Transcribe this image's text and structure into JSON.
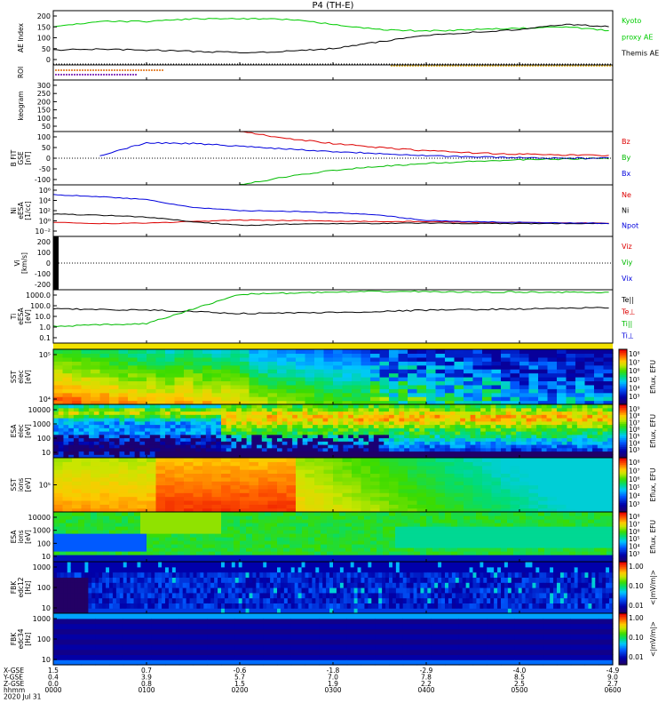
{
  "header": {
    "title": "P4 (TH-E)"
  },
  "panels": [
    {
      "id": "ae",
      "ylabel": [
        "AE Index"
      ],
      "ticks": [
        "200",
        "150",
        "100",
        "50",
        "0"
      ],
      "legend": [
        {
          "text": "Kyoto",
          "color": "#00cc00"
        },
        {
          "text": "proxy AE",
          "color": "#00cc00"
        },
        {
          "text": "Themis AE",
          "color": "#000000"
        }
      ]
    },
    {
      "id": "roi",
      "ylabel": [
        "ROI"
      ],
      "ticks": [],
      "legend": []
    },
    {
      "id": "keogram",
      "ylabel": [
        "keogram"
      ],
      "ticks": [
        "300",
        "250",
        "200",
        "150",
        "100",
        "50"
      ],
      "legend": []
    },
    {
      "id": "bfit",
      "ylabel": [
        "B FIT",
        "GSE",
        "[nT]"
      ],
      "ticks": [
        "100",
        "50",
        "0",
        "-50",
        "-100"
      ],
      "legend": [
        {
          "text": "Bz",
          "color": "#dd0000"
        },
        {
          "text": "By",
          "color": "#00bb00"
        },
        {
          "text": "Bx",
          "color": "#0000dd"
        }
      ]
    },
    {
      "id": "density",
      "ylabel": [
        "Ni",
        "eESA",
        "[1/cc]"
      ],
      "ticks": [
        "10⁶",
        "10⁴",
        "10²",
        "10⁰",
        "10⁻²"
      ],
      "legend": [
        {
          "text": "Ne",
          "color": "#dd0000"
        },
        {
          "text": "Ni",
          "color": "#000000"
        },
        {
          "text": "Npot",
          "color": "#0000dd"
        }
      ]
    },
    {
      "id": "velocity",
      "ylabel": [
        "Vi",
        "[km/s]"
      ],
      "ticks": [
        "200",
        "100",
        "0",
        "-100",
        "-200"
      ],
      "legend": [
        {
          "text": "Viz",
          "color": "#dd0000"
        },
        {
          "text": "Viy",
          "color": "#00bb00"
        },
        {
          "text": "Vix",
          "color": "#0000dd"
        }
      ]
    },
    {
      "id": "temp",
      "ylabel": [
        "Ti",
        "eESA",
        "[eV]"
      ],
      "ticks": [
        "1000.0",
        "100.0",
        "10.0",
        "1.0",
        "0.1"
      ],
      "legend": [
        {
          "text": "Te||",
          "color": "#000000"
        },
        {
          "text": "Te⊥",
          "color": "#dd0000"
        },
        {
          "text": "Ti||",
          "color": "#00bb00"
        },
        {
          "text": "Ti⊥",
          "color": "#0000dd"
        }
      ]
    },
    {
      "id": "sst_e",
      "ylabel": [
        "SST",
        "elec",
        "[eV]"
      ],
      "ticks": [
        "10⁵",
        "10⁴"
      ],
      "cbar": [
        "10⁸",
        "10⁷",
        "10⁶",
        "10⁵",
        "10⁴",
        "10³"
      ],
      "cbar_title": "Eflux, EFU"
    },
    {
      "id": "esa_e",
      "ylabel": [
        "ESA",
        "elec",
        "[eV]"
      ],
      "ticks": [
        "10000",
        "1000",
        "100",
        "10"
      ],
      "cbar": [
        "10⁹",
        "10⁸",
        "10⁷",
        "10⁶",
        "10⁵",
        "10⁴",
        "10³"
      ],
      "cbar_title": "Eflux, EFU"
    },
    {
      "id": "sst_i",
      "ylabel": [
        "SST",
        "ions",
        "[eV]"
      ],
      "ticks": [
        "10⁵"
      ],
      "cbar": [
        "10⁸",
        "10⁷",
        "10⁶",
        "10⁵",
        "10⁴",
        "10³"
      ],
      "cbar_title": "Eflux, EFU"
    },
    {
      "id": "esa_i",
      "ylabel": [
        "ESA",
        "ions",
        "[eV]"
      ],
      "ticks": [
        "10000",
        "1000",
        "100",
        "10"
      ],
      "cbar": [
        "10⁸",
        "10⁷",
        "10⁶",
        "10⁵",
        "10⁴",
        "10³"
      ],
      "cbar_title": "Eflux, EFU"
    },
    {
      "id": "fbk_e12",
      "ylabel": [
        "FBK",
        "edc12",
        "[Hz]"
      ],
      "ticks": [
        "1000",
        "100",
        "10"
      ],
      "cbar": [
        "1.00",
        "0.10",
        "0.01"
      ],
      "cbar_title": "<|mV/m|>"
    },
    {
      "id": "fbk_e34",
      "ylabel": [
        "FBK",
        "edc34",
        "[Hz]"
      ],
      "ticks": [
        "1000",
        "100",
        "10"
      ],
      "cbar": [
        "1.00",
        "0.10",
        "0.01"
      ],
      "cbar_title": "<|mV/m|>"
    }
  ],
  "xaxis": {
    "row_labels": [
      "X-GSE",
      "Y-GSE",
      "Z-GSE",
      "hhmm",
      "2020 Jul 31"
    ],
    "columns": [
      [
        "1.5",
        "0.4",
        "0.0",
        "0000"
      ],
      [
        "0.7",
        "3.9",
        "0.8",
        "0100"
      ],
      [
        "-0.6",
        "5.7",
        "1.5",
        "0200"
      ],
      [
        "-1.8",
        "7.0",
        "1.9",
        "0300"
      ],
      [
        "-2.9",
        "7.8",
        "2.2",
        "0400"
      ],
      [
        "-4.0",
        "8.5",
        "2.5",
        "0500"
      ],
      [
        "-4.9",
        "9.0",
        "2.7",
        "0600"
      ]
    ]
  },
  "chart_data": {
    "type": "line",
    "title": "P4 (TH-E)",
    "x_unit": "hhmm UT, 2020 Jul 31",
    "x_range": [
      "0000",
      "0600"
    ],
    "x_hours": [
      0,
      0.5,
      1,
      1.5,
      2,
      2.5,
      3,
      3.5,
      4,
      4.5,
      5,
      5.5,
      6
    ],
    "panels": [
      {
        "name": "AE Index",
        "ylim": [
          0,
          200
        ],
        "series": [
          {
            "name": "Kyoto proxy AE",
            "color": "#00cc00",
            "values": [
              140,
              160,
              160,
              170,
              170,
              168,
              150,
              130,
              125,
              130,
              135,
              140,
              125
            ]
          },
          {
            "name": "Themis AE",
            "color": "#000000",
            "values": [
              55,
              58,
              55,
              50,
              45,
              50,
              60,
              85,
              110,
              120,
              130,
              150,
              140
            ]
          }
        ]
      },
      {
        "name": "B FIT GSE [nT]",
        "ylim": [
          -100,
          100
        ],
        "series": [
          {
            "name": "Bz",
            "color": "#dd0000",
            "values": [
              null,
              null,
              null,
              null,
              100,
              75,
              55,
              40,
              28,
              20,
              15,
              12,
              10
            ]
          },
          {
            "name": "By",
            "color": "#00bb00",
            "values": [
              null,
              null,
              null,
              null,
              -100,
              -70,
              -45,
              -30,
              -20,
              -12,
              -6,
              -3,
              0
            ]
          },
          {
            "name": "Bx",
            "color": "#0000dd",
            "values": [
              null,
              10,
              58,
              55,
              45,
              35,
              25,
              18,
              10,
              5,
              2,
              0,
              0
            ]
          }
        ]
      },
      {
        "name": "Ni eESA [1/cc]",
        "ylim": [
          0.01,
          1000000
        ],
        "scale": "log",
        "series": [
          {
            "name": "Ne",
            "color": "#dd0000",
            "values": [
              1.5,
              1.0,
              1.2,
              2.0,
              3.5,
              3.0,
              2.5,
              2.0,
              2.0,
              1.5,
              1.5,
              1.2,
              1.2
            ]
          },
          {
            "name": "Ni",
            "color": "#000000",
            "values": [
              30,
              20,
              10,
              2,
              0.5,
              0.8,
              1.0,
              1.0,
              1.2,
              1.0,
              1.0,
              1.0,
              1.0
            ]
          },
          {
            "name": "Npot",
            "color": "#0000dd",
            "values": [
              30000,
              15000,
              5000,
              300,
              100,
              80,
              50,
              20,
              3,
              2,
              1.5,
              1.2,
              1.0
            ]
          }
        ]
      },
      {
        "name": "Vi [km/s]",
        "ylim": [
          -200,
          200
        ],
        "series": []
      },
      {
        "name": "Ti eESA [eV]",
        "ylim": [
          0.1,
          5000
        ],
        "scale": "log",
        "series": [
          {
            "name": "Te||",
            "color": "#000000",
            "values": [
              100,
              90,
              80,
              60,
              40,
              45,
              50,
              60,
              80,
              90,
              100,
              120,
              130
            ]
          },
          {
            "name": "Ti||",
            "color": "#00bb00",
            "values": [
              3,
              4,
              5,
              100,
              2000,
              2500,
              3000,
              3500,
              3500,
              3000,
              3200,
              3000,
              2800
            ]
          }
        ]
      }
    ]
  }
}
